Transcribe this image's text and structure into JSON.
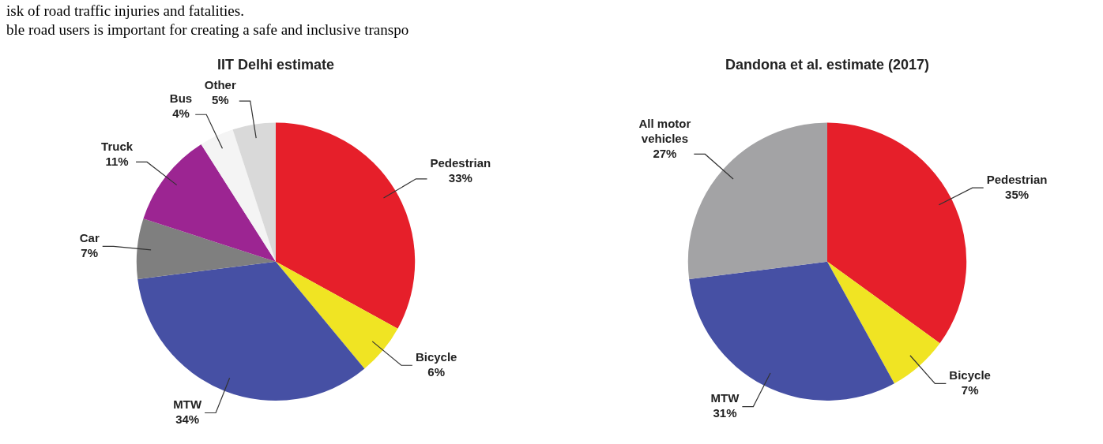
{
  "chart_data": [
    {
      "type": "pie",
      "title": "IIT Delhi estimate",
      "categories": [
        "Pedestrian",
        "Bicycle",
        "MTW",
        "Car",
        "Truck",
        "Bus",
        "Other"
      ],
      "values": [
        33,
        6,
        34,
        7,
        11,
        4,
        5
      ],
      "value_labels": [
        "33%",
        "6%",
        "34%",
        "7%",
        "11%",
        "4%",
        "5%"
      ],
      "colors": [
        "#e61f2a",
        "#f0e423",
        "#4650a4",
        "#7f7f7f",
        "#9c2592",
        "#f4f4f4",
        "#d9d9d9"
      ],
      "annotations": [
        "isk of road traffic injuries and fatalities.",
        "ble road users is important for creating a safe and inclusive transpo"
      ],
      "legend": false
    },
    {
      "type": "pie",
      "title": "Dandona et al. estimate (2017)",
      "categories": [
        "Pedestrian",
        "Bicycle",
        "MTW",
        "All motor vehicles"
      ],
      "values": [
        35,
        7,
        31,
        27
      ],
      "value_labels": [
        "35%",
        "7%",
        "31%",
        "27%"
      ],
      "colors": [
        "#e61f2a",
        "#f0e423",
        "#4650a4",
        "#a3a3a5"
      ],
      "legend": false
    }
  ]
}
